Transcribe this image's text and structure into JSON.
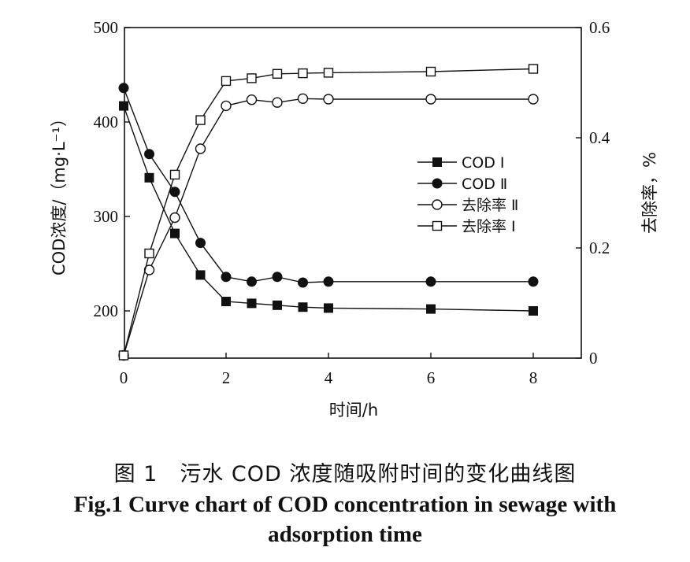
{
  "caption": {
    "cn": "图 1　污水 COD 浓度随吸附时间的变化曲线图",
    "en_line1": "Fig.1 Curve chart of COD concentration in sewage with",
    "en_line2": "adsorption time"
  },
  "chart_data": {
    "type": "line",
    "title": "",
    "xlabel": "时间/h",
    "ylabel_left": "COD浓度/（mg·L⁻¹）",
    "ylabel_right": "去除率，%",
    "xlim": [
      0,
      9
    ],
    "ylim_left": [
      150,
      500
    ],
    "ylim_right": [
      0,
      0.6
    ],
    "x_ticks": [
      0,
      2,
      4,
      6,
      8
    ],
    "y_left_ticks": [
      200,
      300,
      400,
      500
    ],
    "y_right_ticks": [
      0,
      0.2,
      0.4,
      0.6
    ],
    "y_right_tick_labels": [
      "0",
      "0.2",
      "0.4",
      "0.6"
    ],
    "grid": false,
    "legend_position": "center-right",
    "series": [
      {
        "name": "COD Ⅰ",
        "axis": "left",
        "marker": "filled-square",
        "x": [
          0,
          0.5,
          1,
          1.5,
          2,
          2.5,
          3,
          3.5,
          4,
          6,
          8
        ],
        "y": [
          417,
          341,
          282,
          238,
          210,
          208,
          206,
          204,
          203,
          202,
          200
        ]
      },
      {
        "name": "COD Ⅱ",
        "axis": "left",
        "marker": "filled-circle",
        "x": [
          0,
          0.5,
          1,
          1.5,
          2,
          2.5,
          3,
          3.5,
          4,
          6,
          8
        ],
        "y": [
          436,
          366,
          326,
          272,
          236,
          231,
          236,
          230,
          231,
          231,
          231
        ]
      },
      {
        "name": "去除率 Ⅱ",
        "axis": "right",
        "marker": "open-circle",
        "x": [
          0,
          0.5,
          1,
          1.5,
          2,
          2.5,
          3,
          3.5,
          4,
          6,
          8
        ],
        "y": [
          0.005,
          0.16,
          0.255,
          0.38,
          0.458,
          0.469,
          0.464,
          0.471,
          0.47,
          0.47,
          0.47
        ]
      },
      {
        "name": "去除率 Ⅰ",
        "axis": "right",
        "marker": "open-square",
        "x": [
          0,
          0.5,
          1,
          1.5,
          2,
          2.5,
          3,
          3.5,
          4,
          6,
          8
        ],
        "y": [
          0.005,
          0.19,
          0.333,
          0.432,
          0.503,
          0.508,
          0.516,
          0.517,
          0.518,
          0.52,
          0.525
        ]
      }
    ]
  }
}
